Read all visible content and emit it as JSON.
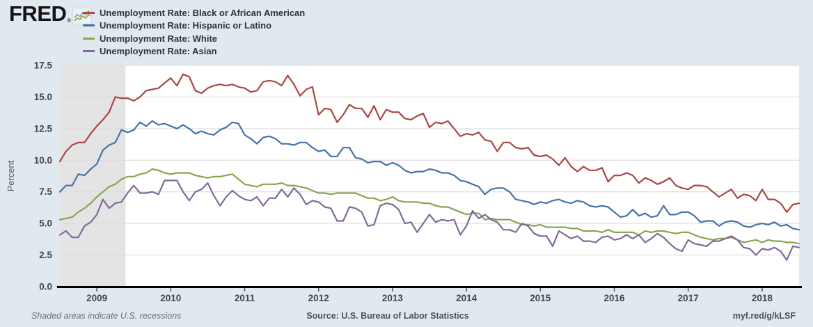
{
  "page": {
    "background_color": "#e1e9f0",
    "plot_background_color": "#ffffff",
    "gridline_color": "#d9d9d9",
    "recession_band_color": "#e4e4e4",
    "axis_line_color": "#000000",
    "tick_text_color": "#444444"
  },
  "header": {
    "logo_text": "FRED",
    "logo_registered_mark": "®",
    "logo_sparkline_icon": "fred-sparkline-icon"
  },
  "legend": {
    "position": "top-left",
    "items": [
      {
        "label": "Unemployment Rate: Black or African American",
        "color": "#aa4643"
      },
      {
        "label": "Unemployment Rate: Hispanic or Latino",
        "color": "#4572a7"
      },
      {
        "label": "Unemployment Rate: White",
        "color": "#89a54e"
      },
      {
        "label": "Unemployment Rate: Asian",
        "color": "#80699b"
      }
    ]
  },
  "chart_data": {
    "type": "line",
    "title": "",
    "xlabel": "",
    "ylabel": "Percent",
    "ylim": [
      0,
      17.5
    ],
    "ytick_labels": [
      "0.0",
      "2.5",
      "5.0",
      "7.5",
      "10.0",
      "12.5",
      "15.0",
      "17.5"
    ],
    "grid": "horizontal",
    "frequency": "monthly",
    "x_start": "2008-07",
    "x_end": "2018-07",
    "xticks": [
      {
        "label": "2009",
        "month_index": 6
      },
      {
        "label": "2010",
        "month_index": 18
      },
      {
        "label": "2011",
        "month_index": 30
      },
      {
        "label": "2012",
        "month_index": 42
      },
      {
        "label": "2013",
        "month_index": 54
      },
      {
        "label": "2014",
        "month_index": 66
      },
      {
        "label": "2015",
        "month_index": 78
      },
      {
        "label": "2016",
        "month_index": 90
      },
      {
        "label": "2017",
        "month_index": 102
      },
      {
        "label": "2018",
        "month_index": 114
      }
    ],
    "recession_bands": [
      {
        "start_index": 0,
        "end_index": 11,
        "note": "Great Recession (clipped at left edge, ends Jun 2009)"
      }
    ],
    "series": [
      {
        "name": "Unemployment Rate: Black or African American",
        "color": "#aa4643",
        "values": [
          9.9,
          10.7,
          11.2,
          11.4,
          11.4,
          12.1,
          12.7,
          13.2,
          13.8,
          15.0,
          14.9,
          14.9,
          14.7,
          15.0,
          15.5,
          15.6,
          15.7,
          16.1,
          16.5,
          15.9,
          16.8,
          16.6,
          15.5,
          15.3,
          15.7,
          15.9,
          16.0,
          15.9,
          16.0,
          15.8,
          15.7,
          15.4,
          15.5,
          16.2,
          16.3,
          16.2,
          15.9,
          16.7,
          16.0,
          15.1,
          15.6,
          15.8,
          13.6,
          14.1,
          14.0,
          13.0,
          13.6,
          14.4,
          14.1,
          14.1,
          13.4,
          14.3,
          13.2,
          14.0,
          13.8,
          13.8,
          13.3,
          13.2,
          13.5,
          13.7,
          12.6,
          13.0,
          12.9,
          13.1,
          12.5,
          11.9,
          12.1,
          12.0,
          12.2,
          11.6,
          11.5,
          10.7,
          11.4,
          11.4,
          11.0,
          10.9,
          11.0,
          10.4,
          10.3,
          10.4,
          10.1,
          9.6,
          10.2,
          9.5,
          9.1,
          9.5,
          9.2,
          9.2,
          9.4,
          8.3,
          8.8,
          8.8,
          9.0,
          8.8,
          8.2,
          8.6,
          8.4,
          8.1,
          8.3,
          8.6,
          8.0,
          7.8,
          7.7,
          8.0,
          8.0,
          7.9,
          7.5,
          7.1,
          7.4,
          7.7,
          7.0,
          7.3,
          7.2,
          6.8,
          7.7,
          6.9,
          6.9,
          6.6,
          5.9,
          6.5,
          6.6
        ]
      },
      {
        "name": "Unemployment Rate: Hispanic or Latino",
        "color": "#4572a7",
        "values": [
          7.5,
          8.0,
          8.0,
          8.9,
          8.8,
          9.3,
          9.7,
          10.8,
          11.2,
          11.4,
          12.4,
          12.2,
          12.4,
          13.0,
          12.7,
          13.1,
          12.8,
          12.9,
          12.7,
          12.5,
          12.8,
          12.5,
          12.1,
          12.3,
          12.1,
          12.0,
          12.4,
          12.6,
          13.0,
          12.9,
          12.0,
          11.7,
          11.3,
          11.8,
          11.9,
          11.7,
          11.3,
          11.3,
          11.2,
          11.4,
          11.4,
          11.0,
          10.7,
          10.8,
          10.3,
          10.3,
          11.0,
          11.0,
          10.2,
          10.1,
          9.8,
          9.9,
          9.9,
          9.6,
          9.8,
          9.6,
          9.2,
          9.0,
          9.1,
          9.1,
          9.3,
          9.2,
          9.0,
          9.0,
          8.8,
          8.4,
          8.3,
          8.1,
          7.9,
          7.3,
          7.7,
          7.8,
          7.8,
          7.5,
          6.9,
          6.8,
          6.7,
          6.5,
          6.7,
          6.6,
          6.8,
          6.9,
          6.7,
          6.6,
          6.8,
          6.7,
          6.4,
          6.3,
          6.4,
          6.3,
          5.9,
          5.5,
          5.6,
          6.1,
          5.6,
          5.8,
          5.5,
          5.6,
          6.4,
          5.7,
          5.7,
          5.9,
          5.9,
          5.6,
          5.1,
          5.2,
          5.2,
          4.8,
          5.1,
          5.2,
          5.1,
          4.8,
          4.7,
          4.9,
          5.0,
          4.9,
          5.1,
          4.8,
          4.9,
          4.6,
          4.5
        ]
      },
      {
        "name": "Unemployment Rate: White",
        "color": "#89a54e",
        "values": [
          5.3,
          5.4,
          5.5,
          5.9,
          6.2,
          6.6,
          7.1,
          7.5,
          7.9,
          8.1,
          8.5,
          8.7,
          8.7,
          8.9,
          9.0,
          9.3,
          9.2,
          9.0,
          8.9,
          9.0,
          9.0,
          9.0,
          8.8,
          8.7,
          8.6,
          8.7,
          8.7,
          8.8,
          8.9,
          8.5,
          8.1,
          8.0,
          7.9,
          8.1,
          8.1,
          8.1,
          8.2,
          8.0,
          8.0,
          7.9,
          7.8,
          7.6,
          7.4,
          7.4,
          7.3,
          7.4,
          7.4,
          7.4,
          7.4,
          7.2,
          7.0,
          7.0,
          6.8,
          6.9,
          7.1,
          6.8,
          6.7,
          6.7,
          6.7,
          6.6,
          6.6,
          6.4,
          6.3,
          6.3,
          6.1,
          5.9,
          5.7,
          5.8,
          5.8,
          5.3,
          5.4,
          5.3,
          5.3,
          5.3,
          5.1,
          4.9,
          4.9,
          4.8,
          4.9,
          4.7,
          4.7,
          4.7,
          4.7,
          4.6,
          4.6,
          4.4,
          4.4,
          4.4,
          4.3,
          4.5,
          4.3,
          4.3,
          4.3,
          4.3,
          4.1,
          4.4,
          4.3,
          4.4,
          4.4,
          4.3,
          4.2,
          4.3,
          4.3,
          4.1,
          3.9,
          3.8,
          3.7,
          3.8,
          3.8,
          3.9,
          3.7,
          3.5,
          3.6,
          3.7,
          3.5,
          3.7,
          3.6,
          3.6,
          3.5,
          3.5,
          3.4
        ]
      },
      {
        "name": "Unemployment Rate: Asian",
        "color": "#80699b",
        "values": [
          4.1,
          4.4,
          3.9,
          3.9,
          4.8,
          5.1,
          5.7,
          6.9,
          6.2,
          6.6,
          6.7,
          7.4,
          8.0,
          7.4,
          7.4,
          7.5,
          7.3,
          8.4,
          8.4,
          8.4,
          7.5,
          6.8,
          7.5,
          7.7,
          8.2,
          7.2,
          6.4,
          7.1,
          7.6,
          7.2,
          6.9,
          6.8,
          7.1,
          6.4,
          7.0,
          7.0,
          7.7,
          7.1,
          7.8,
          7.3,
          6.5,
          6.8,
          6.7,
          6.3,
          6.2,
          5.2,
          5.2,
          6.3,
          6.2,
          5.9,
          4.8,
          4.9,
          6.4,
          6.6,
          6.5,
          6.1,
          5.0,
          5.1,
          4.3,
          5.0,
          5.7,
          5.1,
          5.3,
          5.2,
          5.3,
          4.1,
          4.8,
          6.0,
          5.4,
          5.7,
          5.3,
          5.1,
          4.5,
          4.5,
          4.3,
          5.0,
          4.8,
          4.2,
          4.0,
          4.0,
          3.2,
          4.4,
          4.1,
          3.8,
          4.0,
          3.6,
          3.6,
          3.5,
          3.9,
          4.0,
          3.7,
          3.8,
          4.1,
          3.8,
          4.1,
          3.5,
          3.8,
          4.2,
          3.9,
          3.4,
          3.0,
          2.8,
          3.7,
          3.4,
          3.3,
          3.2,
          3.6,
          3.6,
          3.8,
          4.0,
          3.7,
          3.1,
          3.0,
          2.5,
          3.0,
          2.9,
          3.1,
          2.8,
          2.1,
          3.2,
          3.1
        ]
      }
    ]
  },
  "footer": {
    "note": "Shaded areas indicate U.S. recessions",
    "source": "Source: U.S. Bureau of Labor Statistics",
    "link": "myf.red/g/kLSF"
  }
}
